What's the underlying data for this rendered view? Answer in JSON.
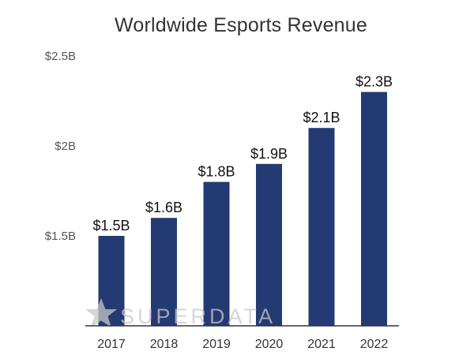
{
  "chart_data": {
    "type": "bar",
    "title": "Worldwide Esports Revenue",
    "categories": [
      "2017",
      "2018",
      "2019",
      "2020",
      "2021",
      "2022"
    ],
    "values": [
      1.5,
      1.6,
      1.8,
      1.9,
      2.1,
      2.3
    ],
    "data_labels": [
      "$1.5B",
      "$1.6B",
      "$1.8B",
      "$1.9B",
      "$2.1B",
      "$2.3B"
    ],
    "y_ticks": [
      {
        "value": 1.5,
        "label": "$1.5B"
      },
      {
        "value": 2.0,
        "label": "$2B"
      },
      {
        "value": 2.5,
        "label": "$2.5B"
      }
    ],
    "ylim": [
      1.0,
      2.5
    ],
    "xlabel": "",
    "ylabel": "",
    "grid": false,
    "bar_color": "#243a73",
    "axis_color": "#333333"
  },
  "watermark": {
    "text": "SUPERDATA",
    "icon": "star-icon"
  }
}
